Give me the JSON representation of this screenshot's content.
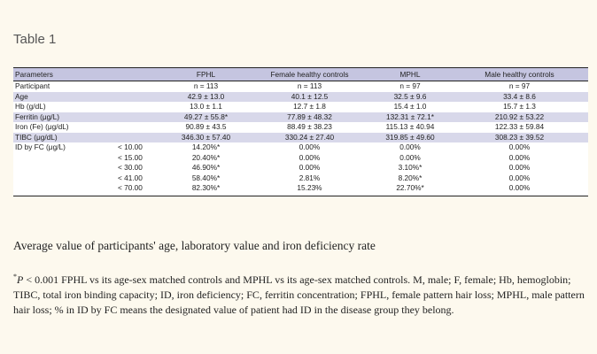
{
  "title": "Table 1",
  "table": {
    "headers": [
      "Parameters",
      "",
      "FPHL",
      "Female healthy controls",
      "MPHL",
      "Male healthy controls"
    ],
    "rows": [
      {
        "param": "Participant",
        "sub": "",
        "fphl": "n = 113",
        "fctrl": "n = 113",
        "mphl": "n = 97",
        "mctrl": "n = 97",
        "shade": false
      },
      {
        "param": "Age",
        "sub": "",
        "fphl": "42.9 ± 13.0",
        "fctrl": "40.1 ± 12.5",
        "mphl": "32.5 ± 9.6",
        "mctrl": "33.4 ± 8.6",
        "shade": true
      },
      {
        "param": "Hb (g/dL)",
        "sub": "",
        "fphl": "13.0 ± 1.1",
        "fctrl": "12.7 ± 1.8",
        "mphl": "15.4 ± 1.0",
        "mctrl": "15.7 ± 1.3",
        "shade": false
      },
      {
        "param": "Ferritin (μg/L)",
        "sub": "",
        "fphl": "49.27 ± 55.8*",
        "fctrl": "77.89 ± 48.32",
        "mphl": "132.31 ± 72.1*",
        "mctrl": "210.92 ± 53.22",
        "shade": true
      },
      {
        "param": "Iron (Fe) (μg/dL)",
        "sub": "",
        "fphl": "90.89 ± 43.5",
        "fctrl": "88.49 ± 38.23",
        "mphl": "115.13 ± 40.94",
        "mctrl": "122.33 ± 59.84",
        "shade": false
      },
      {
        "param": "TIBC (μg/dL)",
        "sub": "",
        "fphl": "346.30 ± 57.40",
        "fctrl": "330.24 ± 27.40",
        "mphl": "319.85 ± 49.60",
        "mctrl": "308.23 ± 39.52",
        "shade": true
      },
      {
        "param": "ID by FC (μg/L)",
        "sub": "< 10.00",
        "fphl": "14.20%*",
        "fctrl": "0.00%",
        "mphl": "0.00%",
        "mctrl": "0.00%",
        "shade": false
      },
      {
        "param": "",
        "sub": "< 15.00",
        "fphl": "20.40%*",
        "fctrl": "0.00%",
        "mphl": "0.00%",
        "mctrl": "0.00%",
        "shade": false
      },
      {
        "param": "",
        "sub": "< 30.00",
        "fphl": "46.90%*",
        "fctrl": "0.00%",
        "mphl": "3.10%*",
        "mctrl": "0.00%",
        "shade": false
      },
      {
        "param": "",
        "sub": "< 41.00",
        "fphl": "58.40%*",
        "fctrl": "2.81%",
        "mphl": "8.20%*",
        "mctrl": "0.00%",
        "shade": false
      },
      {
        "param": "",
        "sub": "< 70.00",
        "fphl": "82.30%*",
        "fctrl": "15.23%",
        "mphl": "22.70%*",
        "mctrl": "0.00%",
        "shade": false
      }
    ]
  },
  "caption": "Average value of participants' age, laboratory value and iron deficiency rate",
  "footnote": {
    "marker": "*",
    "p": "P",
    "text": " < 0.001 FPHL vs its age-sex matched controls and MPHL vs its age-sex matched controls. M, male; F, female; Hb, hemoglobin; TIBC, total iron binding capacity; ID, iron deficiency; FC, ferritin concentration; FPHL, female pattern hair loss; MPHL, male pattern hair loss; % in ID by FC means the designated value of patient had ID in the disease group they belong."
  }
}
